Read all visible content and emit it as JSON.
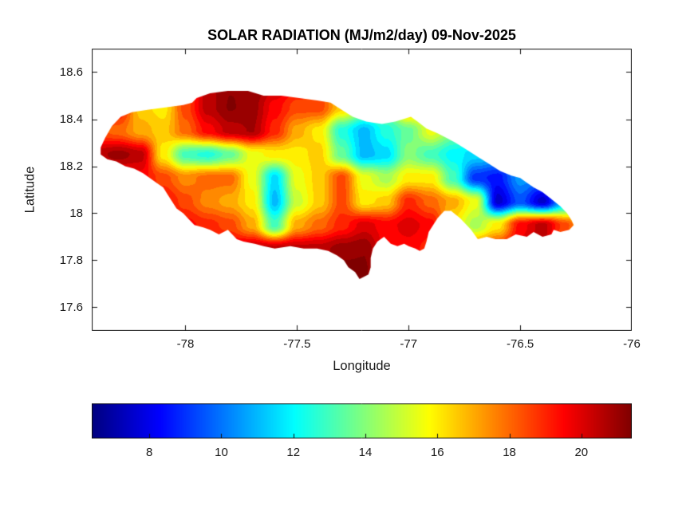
{
  "figure": {
    "background": "#ffffff",
    "axis_color": "#111111",
    "label_color": "#191919"
  },
  "chart_data": {
    "type": "heatmap",
    "title": "SOLAR RADIATION (MJ/m2/day) 09-Nov-2025",
    "xlabel": "Longitude",
    "ylabel": "Latitude",
    "region": "Jamaica",
    "unit": "MJ/m2/day",
    "date": "09-Nov-2025",
    "xlim": [
      -78.42,
      -76.0
    ],
    "ylim": [
      17.5,
      18.7
    ],
    "grid_lines": false,
    "legend_position": "none",
    "x_ticks": [
      {
        "value": -78,
        "label": "-78"
      },
      {
        "value": -77.5,
        "label": "-77.5"
      },
      {
        "value": -77,
        "label": "-77"
      },
      {
        "value": -76.5,
        "label": "-76.5"
      },
      {
        "value": -76,
        "label": "-76"
      }
    ],
    "y_ticks": [
      {
        "value": 17.6,
        "label": "17.6"
      },
      {
        "value": 17.8,
        "label": "17.8"
      },
      {
        "value": 18,
        "label": "18"
      },
      {
        "value": 18.2,
        "label": "18.2"
      },
      {
        "value": 18.4,
        "label": "18.4"
      },
      {
        "value": 18.6,
        "label": "18.6"
      }
    ],
    "colorbar": {
      "orientation": "horizontal",
      "position": "bottom",
      "colormap": "jet",
      "min": 6.4,
      "max": 21.4,
      "band_step": 0.5,
      "ticks": [
        {
          "value": 8,
          "label": "8"
        },
        {
          "value": 10,
          "label": "10"
        },
        {
          "value": 12,
          "label": "12"
        },
        {
          "value": 14,
          "label": "14"
        },
        {
          "value": 16,
          "label": "16"
        },
        {
          "value": 18,
          "label": "18"
        },
        {
          "value": 20,
          "label": "20"
        }
      ]
    },
    "heat_grid": {
      "lon_start": -78.4,
      "lon_step": 0.1,
      "lat_start": 18.55,
      "lat_step": -0.1,
      "ncols": 23,
      "nrows": 10,
      "values": [
        [
          19,
          19,
          17.5,
          17,
          18.5,
          20.5,
          21.2,
          21.3,
          20.5,
          19.5,
          19,
          16.5,
          14.5,
          14,
          17,
          17,
          14,
          13.5,
          13,
          12.5,
          12,
          15,
          17
        ],
        [
          19.5,
          19.5,
          16.5,
          16,
          18.5,
          20.5,
          21.3,
          21,
          19.5,
          18.5,
          18.5,
          16.5,
          14.5,
          14,
          17.5,
          16,
          14,
          13.5,
          13,
          12.5,
          12,
          14,
          16
        ],
        [
          18.5,
          18,
          17,
          16.5,
          18,
          19.5,
          20.5,
          20.8,
          19,
          17,
          16,
          12.5,
          11,
          12.5,
          13.5,
          15.5,
          14,
          13,
          12,
          11.5,
          12,
          15,
          17
        ],
        [
          20.5,
          21,
          20.5,
          16,
          13,
          12.5,
          13.5,
          15.5,
          16,
          16,
          16.5,
          13.5,
          11,
          11.5,
          14,
          13,
          12,
          11.5,
          11,
          11,
          11,
          14,
          16
        ],
        [
          19.5,
          19,
          19.5,
          18.5,
          17.5,
          18,
          18,
          15.5,
          11.5,
          15.5,
          16.5,
          18.5,
          15.5,
          14.5,
          16,
          16,
          13,
          9,
          8.5,
          10.5,
          10,
          12,
          15
        ],
        [
          20,
          19.5,
          19,
          19.5,
          18.5,
          17.5,
          17,
          16,
          11,
          15,
          16.5,
          18.5,
          16,
          16.5,
          19,
          18,
          17,
          15.5,
          7.5,
          9.5,
          7.5,
          11,
          15
        ],
        [
          20,
          20,
          19.5,
          19.5,
          19.5,
          19,
          18.5,
          17,
          13,
          17,
          18,
          19,
          20,
          19.5,
          20,
          19.5,
          16,
          14.5,
          16,
          19.5,
          20.5,
          18.5,
          16
        ],
        [
          20,
          20,
          20,
          19.5,
          19.5,
          19.5,
          20,
          20.5,
          20.5,
          20.5,
          20.5,
          21,
          21.2,
          19.5,
          19.5,
          19,
          17,
          18,
          19,
          20,
          20.5,
          18,
          15
        ],
        [
          20,
          20,
          20,
          20,
          19.5,
          19.5,
          20,
          20.5,
          20.5,
          20.5,
          21,
          21.5,
          21.4,
          19.5,
          19,
          18.5,
          17,
          18,
          19.5,
          20,
          20,
          17.5,
          15
        ],
        [
          20,
          20,
          20,
          20,
          19.5,
          19.5,
          20,
          20.5,
          20.5,
          20.5,
          21,
          21.3,
          21.3,
          19.5,
          19,
          18.5,
          17,
          18,
          19.5,
          20,
          20,
          17.5,
          15
        ]
      ]
    },
    "coastline": [
      [
        -78.38,
        18.28
      ],
      [
        -78.36,
        18.32
      ],
      [
        -78.33,
        18.37
      ],
      [
        -78.29,
        18.41
      ],
      [
        -78.24,
        18.43
      ],
      [
        -78.17,
        18.44
      ],
      [
        -78.09,
        18.45
      ],
      [
        -78.01,
        18.46
      ],
      [
        -77.97,
        18.47
      ],
      [
        -77.95,
        18.49
      ],
      [
        -77.89,
        18.51
      ],
      [
        -77.81,
        18.52
      ],
      [
        -77.72,
        18.52
      ],
      [
        -77.65,
        18.5
      ],
      [
        -77.57,
        18.5
      ],
      [
        -77.49,
        18.49
      ],
      [
        -77.41,
        18.48
      ],
      [
        -77.35,
        18.47
      ],
      [
        -77.3,
        18.44
      ],
      [
        -77.25,
        18.41
      ],
      [
        -77.19,
        18.39
      ],
      [
        -77.12,
        18.38
      ],
      [
        -77.06,
        18.39
      ],
      [
        -76.99,
        18.41
      ],
      [
        -76.96,
        18.39
      ],
      [
        -76.92,
        18.36
      ],
      [
        -76.87,
        18.34
      ],
      [
        -76.83,
        18.32
      ],
      [
        -76.79,
        18.3
      ],
      [
        -76.74,
        18.27
      ],
      [
        -76.69,
        18.24
      ],
      [
        -76.64,
        18.21
      ],
      [
        -76.59,
        18.18
      ],
      [
        -76.54,
        18.16
      ],
      [
        -76.5,
        18.15
      ],
      [
        -76.47,
        18.13
      ],
      [
        -76.44,
        18.11
      ],
      [
        -76.4,
        18.09
      ],
      [
        -76.36,
        18.06
      ],
      [
        -76.32,
        18.03
      ],
      [
        -76.29,
        18.0
      ],
      [
        -76.27,
        17.97
      ],
      [
        -76.26,
        17.95
      ],
      [
        -76.28,
        17.93
      ],
      [
        -76.32,
        17.92
      ],
      [
        -76.35,
        17.93
      ],
      [
        -76.36,
        17.91
      ],
      [
        -76.4,
        17.9
      ],
      [
        -76.44,
        17.92
      ],
      [
        -76.47,
        17.9
      ],
      [
        -76.52,
        17.91
      ],
      [
        -76.56,
        17.89
      ],
      [
        -76.61,
        17.89
      ],
      [
        -76.65,
        17.9
      ],
      [
        -76.69,
        17.89
      ],
      [
        -76.72,
        17.93
      ],
      [
        -76.74,
        17.95
      ],
      [
        -76.77,
        17.98
      ],
      [
        -76.81,
        18.01
      ],
      [
        -76.84,
        18.01
      ],
      [
        -76.87,
        17.98
      ],
      [
        -76.89,
        17.95
      ],
      [
        -76.91,
        17.92
      ],
      [
        -76.92,
        17.88
      ],
      [
        -76.93,
        17.85
      ],
      [
        -76.95,
        17.84
      ],
      [
        -76.97,
        17.85
      ],
      [
        -77.0,
        17.86
      ],
      [
        -77.02,
        17.87
      ],
      [
        -77.05,
        17.86
      ],
      [
        -77.08,
        17.87
      ],
      [
        -77.11,
        17.9
      ],
      [
        -77.14,
        17.88
      ],
      [
        -77.16,
        17.85
      ],
      [
        -77.17,
        17.81
      ],
      [
        -77.17,
        17.77
      ],
      [
        -77.18,
        17.74
      ],
      [
        -77.22,
        17.72
      ],
      [
        -77.24,
        17.75
      ],
      [
        -77.27,
        17.77
      ],
      [
        -77.29,
        17.8
      ],
      [
        -77.32,
        17.82
      ],
      [
        -77.36,
        17.84
      ],
      [
        -77.41,
        17.85
      ],
      [
        -77.47,
        17.85
      ],
      [
        -77.53,
        17.86
      ],
      [
        -77.6,
        17.85
      ],
      [
        -77.65,
        17.86
      ],
      [
        -77.69,
        17.87
      ],
      [
        -77.74,
        17.88
      ],
      [
        -77.77,
        17.89
      ],
      [
        -77.81,
        17.93
      ],
      [
        -77.85,
        17.91
      ],
      [
        -77.89,
        17.93
      ],
      [
        -77.92,
        17.94
      ],
      [
        -77.96,
        17.95
      ],
      [
        -77.99,
        17.98
      ],
      [
        -78.01,
        18.0
      ],
      [
        -78.04,
        18.02
      ],
      [
        -78.06,
        18.05
      ],
      [
        -78.08,
        18.08
      ],
      [
        -78.1,
        18.11
      ],
      [
        -78.13,
        18.13
      ],
      [
        -78.16,
        18.15
      ],
      [
        -78.19,
        18.17
      ],
      [
        -78.23,
        18.19
      ],
      [
        -78.27,
        18.2
      ],
      [
        -78.31,
        18.22
      ],
      [
        -78.35,
        18.23
      ],
      [
        -78.38,
        18.25
      ]
    ]
  }
}
